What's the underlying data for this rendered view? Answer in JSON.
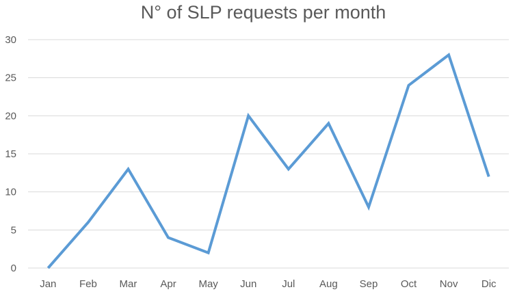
{
  "chart_data": {
    "type": "line",
    "title": "N° of SLP requests per month",
    "xlabel": "",
    "ylabel": "",
    "categories": [
      "Jan",
      "Feb",
      "Mar",
      "Apr",
      "May",
      "Jun",
      "Jul",
      "Aug",
      "Sep",
      "Oct",
      "Nov",
      "Dic"
    ],
    "series": [
      {
        "values": [
          0,
          6,
          13,
          4,
          2,
          20,
          13,
          19,
          8,
          24,
          28,
          12
        ],
        "color": "#5B9BD5"
      }
    ],
    "yticks": [
      0,
      5,
      10,
      15,
      20,
      25,
      30
    ],
    "ylim": [
      0,
      30
    ],
    "grid": true,
    "legend": "none",
    "colors": {
      "line": "#5B9BD5",
      "grid": "#D9D9D9",
      "text": "#595959"
    }
  }
}
